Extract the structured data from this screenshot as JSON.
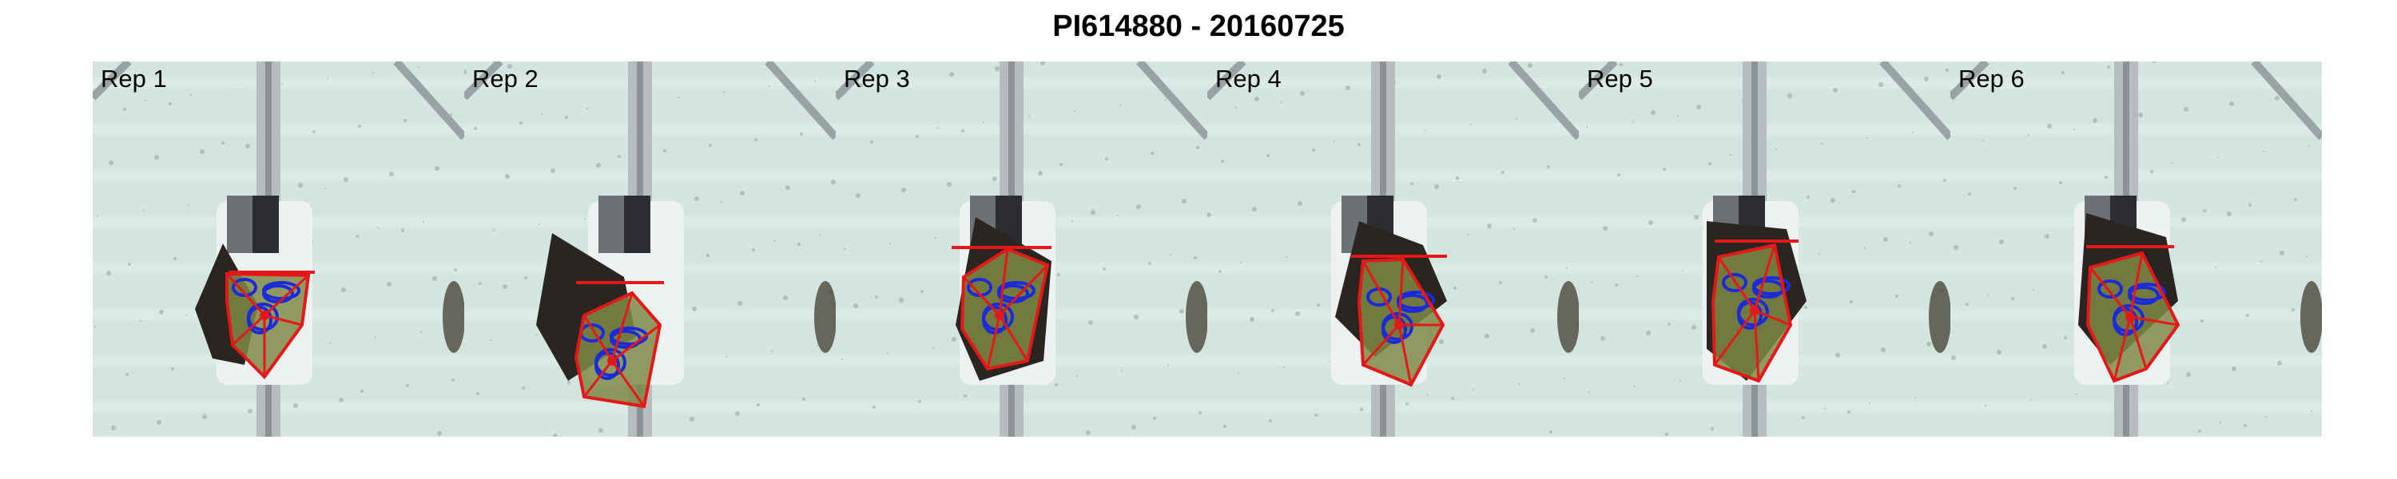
{
  "title": "PI614880 - 20160725",
  "panels": [
    {
      "label": "Rep 1"
    },
    {
      "label": "Rep 2"
    },
    {
      "label": "Rep 3"
    },
    {
      "label": "Rep 4"
    },
    {
      "label": "Rep 5"
    },
    {
      "label": "Rep 6"
    }
  ],
  "colors": {
    "background": "#ffffff",
    "floor": "#d3e5e1",
    "rail": "#b7bcbe",
    "pot": "#eef1f2",
    "leaf": "#7f8a45",
    "contour": "#1a2bd8",
    "hull": "#e51818",
    "soil": "#2a2520"
  },
  "icons": [
    "plant-image",
    "convex-hull-overlay",
    "leaf-contour-overlay"
  ]
}
